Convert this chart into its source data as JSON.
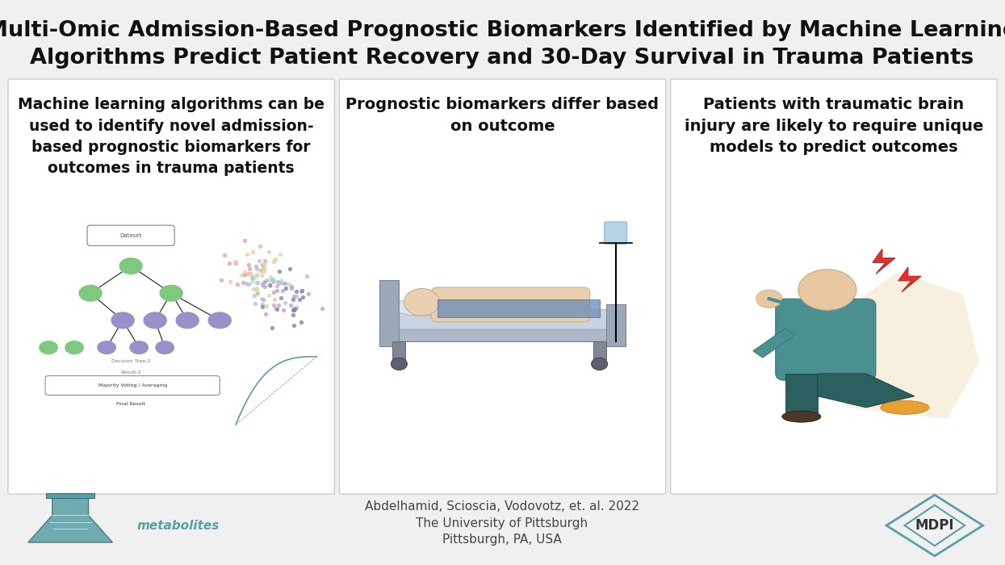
{
  "title_line1": "Multi-Omic Admission-Based Prognostic Biomarkers Identified by Machine Learning",
  "title_line2": "Algorithms Predict Patient Recovery and 30-Day Survival in Trauma Patients",
  "bg_color": "#f0f0f0",
  "panel_color": "#e8edf2",
  "panel_border_color": "#cccccc",
  "title_color": "#111111",
  "panel_text_color": "#111111",
  "footer_text_color": "#555555",
  "teal_color": "#5a9fa8",
  "panel1_text": "Machine learning algorithms can be\nused to identify novel admission-\nbased prognostic biomarkers for\noutcomes in trauma patients",
  "panel2_text": "Prognostic biomarkers differ based\non outcome",
  "panel3_text": "Patients with traumatic brain\ninjury are likely to require unique\nmodels to predict outcomes",
  "footer_line1": "Abdelhamid, Scioscia, Vodovotz, et. al. 2022",
  "footer_line2": "The University of Pittsburgh",
  "footer_line3": "Pittsburgh, PA, USA",
  "metabolites_label": "metabolites",
  "mdpi_label": "MDPI"
}
